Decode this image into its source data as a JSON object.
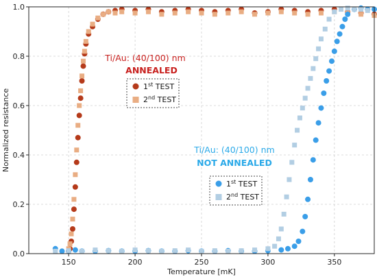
{
  "chart_data": {
    "type": "scatter",
    "xlabel": "Temperature [mK]",
    "ylabel": "Normalized resistance",
    "xlim": [
      120,
      380
    ],
    "ylim": [
      0,
      1.0
    ],
    "xticks": [
      150,
      200,
      250,
      300,
      350
    ],
    "yticks": [
      0.0,
      0.2,
      0.4,
      0.6,
      0.8,
      1.0
    ],
    "grid": true,
    "annotations": [
      {
        "title": "Ti/Au: (40/100) nm",
        "subtitle": "ANNEALED",
        "color": "#c8201e",
        "title_color": "#c8201e"
      },
      {
        "title": "Ti/Au: (40/100) nm",
        "subtitle": "NOT ANNEALED",
        "color": "#2aa9e8",
        "title_color": "#2aa9e8"
      }
    ],
    "legends": [
      {
        "position": "center",
        "entries": [
          {
            "label_main": "1",
            "sup": "st",
            "label_rest": " TEST",
            "marker": "circle",
            "color": "#b53a1a"
          },
          {
            "label_main": "2",
            "sup": "nd",
            "label_rest": " TEST",
            "marker": "square",
            "color": "#e9ad83"
          }
        ]
      },
      {
        "position": "lower-right",
        "entries": [
          {
            "label_main": "1",
            "sup": "st",
            "label_rest": "  TEST",
            "marker": "circle",
            "color": "#3a9ee8"
          },
          {
            "label_main": "2",
            "sup": "nd",
            "label_rest": " TEST",
            "marker": "square",
            "color": "#b2cee3"
          }
        ]
      }
    ],
    "series": [
      {
        "color": "#b53a1a",
        "marker": "circle",
        "x": [
          150,
          151,
          152,
          153,
          154,
          155,
          156,
          157,
          158,
          159,
          160,
          161,
          162,
          163,
          165,
          168,
          172,
          176,
          180,
          185,
          190,
          200,
          210,
          220,
          230,
          240,
          250,
          260,
          270,
          280,
          290,
          300,
          310,
          320,
          330,
          340,
          350,
          360,
          370,
          380
        ],
        "y": [
          0.01,
          0.02,
          0.05,
          0.1,
          0.18,
          0.27,
          0.37,
          0.47,
          0.56,
          0.63,
          0.7,
          0.76,
          0.81,
          0.85,
          0.89,
          0.92,
          0.95,
          0.97,
          0.98,
          0.985,
          0.99,
          0.985,
          0.99,
          0.98,
          0.985,
          0.99,
          0.985,
          0.98,
          0.985,
          0.99,
          0.975,
          0.98,
          0.99,
          0.985,
          0.98,
          0.985,
          0.99,
          0.98,
          0.975,
          0.97
        ]
      },
      {
        "color": "#e9ad83",
        "marker": "square",
        "x": [
          150,
          151,
          152,
          153,
          154,
          155,
          156,
          157,
          158,
          159,
          160,
          161,
          162,
          163,
          165,
          168,
          172,
          176,
          180,
          185,
          190,
          200,
          210,
          220,
          230,
          240,
          250,
          260,
          270,
          280,
          290,
          300,
          310,
          320,
          330,
          340,
          350,
          360,
          370,
          380
        ],
        "y": [
          0.02,
          0.04,
          0.08,
          0.14,
          0.22,
          0.32,
          0.42,
          0.52,
          0.6,
          0.66,
          0.72,
          0.78,
          0.82,
          0.86,
          0.9,
          0.93,
          0.955,
          0.97,
          0.98,
          0.975,
          0.98,
          0.975,
          0.98,
          0.97,
          0.975,
          0.98,
          0.975,
          0.97,
          0.975,
          0.98,
          0.97,
          0.975,
          0.98,
          0.975,
          0.97,
          0.975,
          0.98,
          0.975,
          0.97,
          0.965
        ]
      },
      {
        "color": "#3a9ee8",
        "marker": "circle",
        "x": [
          140,
          145,
          150,
          155,
          160,
          170,
          180,
          190,
          200,
          210,
          220,
          230,
          240,
          250,
          260,
          270,
          280,
          290,
          300,
          310,
          315,
          320,
          323,
          326,
          328,
          330,
          332,
          334,
          336,
          338,
          340,
          342,
          344,
          346,
          348,
          350,
          352,
          354,
          356,
          358,
          360,
          365,
          370,
          375,
          380
        ],
        "y": [
          0.02,
          0.01,
          0.01,
          0.015,
          0.01,
          0.01,
          0.012,
          0.01,
          0.01,
          0.012,
          0.01,
          0.01,
          0.012,
          0.01,
          0.01,
          0.012,
          0.01,
          0.01,
          0.012,
          0.015,
          0.02,
          0.03,
          0.05,
          0.09,
          0.15,
          0.22,
          0.3,
          0.38,
          0.46,
          0.53,
          0.59,
          0.65,
          0.7,
          0.74,
          0.78,
          0.82,
          0.86,
          0.89,
          0.92,
          0.95,
          0.97,
          0.99,
          0.995,
          0.99,
          0.99
        ]
      },
      {
        "color": "#b2cee3",
        "marker": "square",
        "x": [
          140,
          150,
          160,
          170,
          180,
          190,
          200,
          210,
          220,
          230,
          240,
          250,
          260,
          270,
          280,
          290,
          300,
          305,
          308,
          310,
          312,
          314,
          316,
          318,
          320,
          322,
          324,
          326,
          328,
          330,
          332,
          334,
          336,
          338,
          340,
          343,
          346,
          350,
          355,
          360,
          365,
          370,
          375
        ],
        "y": [
          0.01,
          0.012,
          0.01,
          0.015,
          0.012,
          0.01,
          0.015,
          0.012,
          0.01,
          0.012,
          0.015,
          0.01,
          0.012,
          0.01,
          0.012,
          0.015,
          0.02,
          0.03,
          0.06,
          0.1,
          0.16,
          0.23,
          0.3,
          0.37,
          0.44,
          0.5,
          0.55,
          0.59,
          0.63,
          0.67,
          0.71,
          0.75,
          0.79,
          0.83,
          0.87,
          0.91,
          0.95,
          0.98,
          0.99,
          0.995,
          0.99,
          0.99,
          0.985
        ]
      }
    ]
  }
}
